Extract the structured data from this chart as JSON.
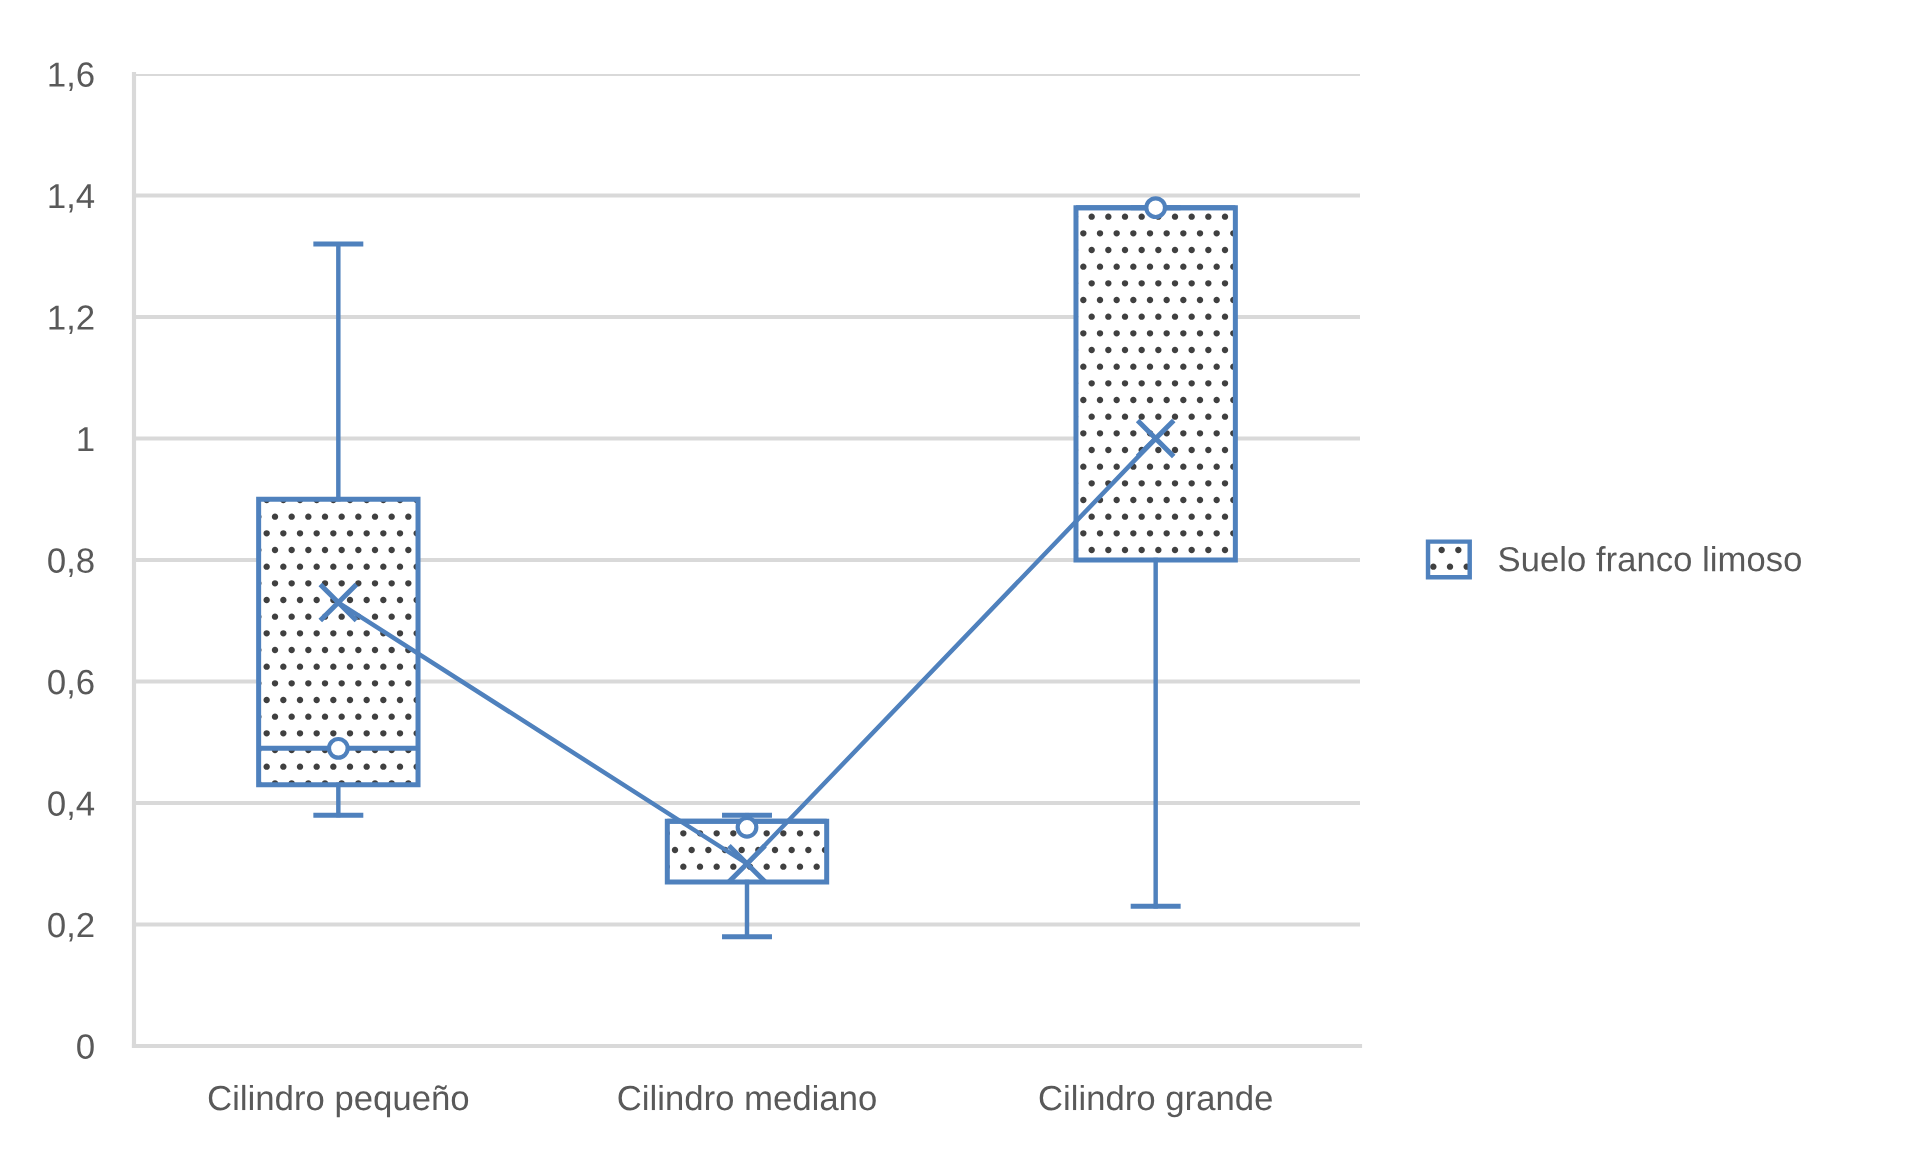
{
  "chart_data": {
    "type": "box",
    "categories": [
      "Cilindro pequeño",
      "Cilindro mediano",
      "Cilindro grande"
    ],
    "series": [
      {
        "name": "Suelo franco limoso",
        "color": "#4f81bd",
        "boxes": [
          {
            "low": 0.38,
            "q1": 0.43,
            "median": 0.49,
            "q3": 0.9,
            "high": 1.32,
            "mean": 0.73
          },
          {
            "low": 0.18,
            "q1": 0.27,
            "median": 0.37,
            "q3": 0.37,
            "high": 0.38,
            "mean": 0.3
          },
          {
            "low": 0.23,
            "q1": 0.8,
            "median": 1.38,
            "q3": 1.38,
            "high": 1.38,
            "mean": 1.0
          }
        ]
      },
      {
        "type": "line",
        "color": "#4f81bd",
        "values": [
          0.73,
          0.3,
          1.0
        ],
        "marker": "none"
      },
      {
        "type": "scatter",
        "color": "#4f81bd",
        "x": [
          "Cilindro pequeño",
          "Cilindro mediano",
          "Cilindro grande"
        ],
        "values": [
          0.49,
          0.36,
          1.38
        ],
        "marker": "circle"
      }
    ],
    "ylim": [
      0,
      1.6
    ],
    "yticks": [
      0,
      {
        "value": 0.2,
        "label": "0,2"
      },
      {
        "value": 0.4,
        "label": "0,4"
      },
      {
        "value": 0.6,
        "label": "0,6"
      },
      {
        "value": 0.8,
        "label": "0,8"
      },
      1,
      {
        "value": 1.2,
        "label": "1,2"
      },
      {
        "value": 1.4,
        "label": "1,4"
      },
      {
        "value": 1.6,
        "label": "1,6"
      }
    ],
    "grid": "y",
    "legend": "right"
  }
}
